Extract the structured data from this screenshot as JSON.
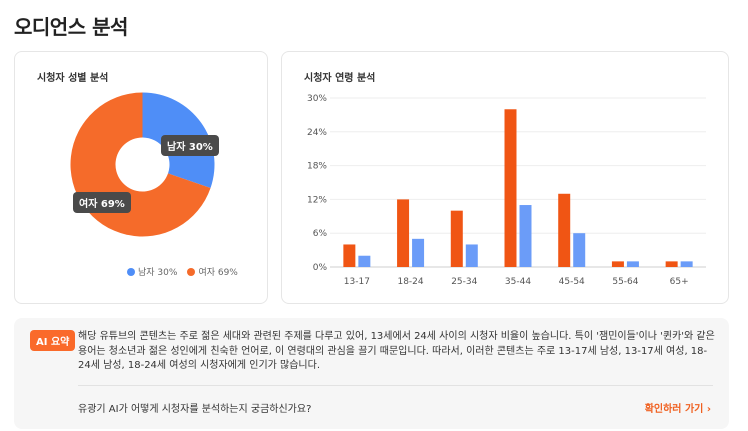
{
  "page": {
    "title": "오디언스 분석"
  },
  "gender": {
    "title": "시청자 성별 분석",
    "male": {
      "label": "남자",
      "percent": 30,
      "tooltip": "남자 30%",
      "legend": "남자 30%",
      "color": "#4f8ef7"
    },
    "female": {
      "label": "여자",
      "percent": 69,
      "tooltip": "여자 69%",
      "legend": "여자 69%",
      "color": "#f56b2a"
    }
  },
  "age": {
    "title": "시청자 연령 분석",
    "chart_data": {
      "type": "bar",
      "categories": [
        "13-17",
        "18-24",
        "25-34",
        "35-44",
        "45-54",
        "55-64",
        "65+"
      ],
      "series": [
        {
          "color": "#f05514",
          "values": [
            4,
            12,
            10,
            28,
            13,
            1,
            1
          ]
        },
        {
          "color": "#6b9cf8",
          "values": [
            2,
            5,
            4,
            11,
            6,
            1,
            1
          ]
        }
      ],
      "yticks": [
        "0%",
        "6%",
        "12%",
        "18%",
        "24%",
        "30%"
      ],
      "ylim": [
        0,
        30
      ],
      "grid": true
    }
  },
  "ai": {
    "badge": "AI 요약",
    "summary": "해당 유튜브의 콘텐츠는 주로 젊은 세대와 관련된 주제를 다루고 있어, 13세에서 24세 사이의 시청자 비율이 높습니다. 특이 '잼민이들'이나 '퀸카'와 같은 용어는 청소년과 젊은 성인에게 친숙한 언어로, 이 연령대의 관심을 끌기 때문입니다. 따라서, 이러한 콘텐츠는 주로 13-17세 남성, 13-17세 여성, 18-24세 남성, 18-24세 여성의 시청자에게 인기가 많습니다.",
    "question": "유광기 AI가 어떻게 시청자를 분석하는지 궁금하신가요?",
    "link_label": "확인하러 가기 ›"
  }
}
